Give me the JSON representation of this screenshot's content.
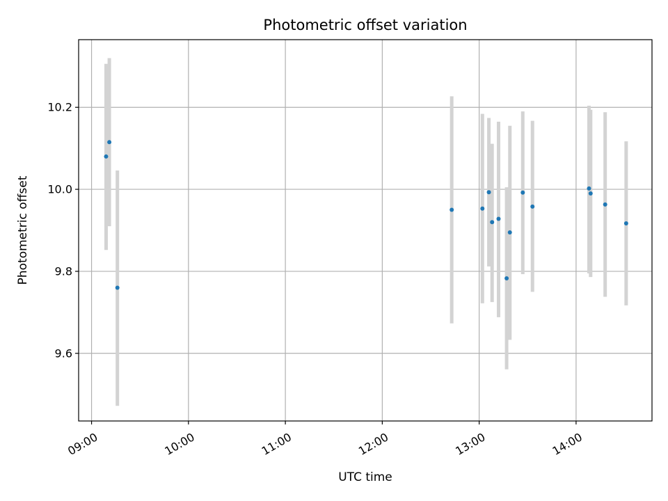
{
  "chart_data": {
    "type": "scatter",
    "title": "Photometric offset variation",
    "xlabel": "UTC time",
    "ylabel": "Photometric offset",
    "x_unit": "UTC time (HH:MM)",
    "xlim": [
      "08:52",
      "14:47"
    ],
    "ylim": [
      9.435,
      10.365
    ],
    "x_ticks": [
      "09:00",
      "10:00",
      "11:00",
      "12:00",
      "13:00",
      "14:00"
    ],
    "y_ticks": [
      9.6,
      9.8,
      10.0,
      10.2
    ],
    "y_tick_labels": [
      "9.6",
      "9.8",
      "10.0",
      "10.2"
    ],
    "grid": true,
    "x_tick_rotation_deg": 30,
    "colors": {
      "point": "#1f77b4",
      "errorbar": "#d3d3d3",
      "grid": "#b0b0b0",
      "axes": "#000000"
    },
    "points": [
      {
        "x": "09:09",
        "y": 10.08,
        "y_err_low": 9.852,
        "y_err_high": 10.306
      },
      {
        "x": "09:11",
        "y": 10.115,
        "y_err_low": 9.91,
        "y_err_high": 10.32
      },
      {
        "x": "09:16",
        "y": 9.76,
        "y_err_low": 9.472,
        "y_err_high": 10.046
      },
      {
        "x": "12:43",
        "y": 9.95,
        "y_err_low": 9.673,
        "y_err_high": 10.227
      },
      {
        "x": "13:02",
        "y": 9.953,
        "y_err_low": 9.722,
        "y_err_high": 10.184
      },
      {
        "x": "13:06",
        "y": 9.993,
        "y_err_low": 9.812,
        "y_err_high": 10.174
      },
      {
        "x": "13:08",
        "y": 9.92,
        "y_err_low": 9.725,
        "y_err_high": 10.111
      },
      {
        "x": "13:12",
        "y": 9.928,
        "y_err_low": 9.688,
        "y_err_high": 10.165
      },
      {
        "x": "13:17",
        "y": 9.783,
        "y_err_low": 9.561,
        "y_err_high": 10.005
      },
      {
        "x": "13:19",
        "y": 9.895,
        "y_err_low": 9.633,
        "y_err_high": 10.155
      },
      {
        "x": "13:27",
        "y": 9.992,
        "y_err_low": 9.793,
        "y_err_high": 10.19
      },
      {
        "x": "13:33",
        "y": 9.958,
        "y_err_low": 9.75,
        "y_err_high": 10.167
      },
      {
        "x": "14:08",
        "y": 10.002,
        "y_err_low": 9.795,
        "y_err_high": 10.204
      },
      {
        "x": "14:09",
        "y": 9.99,
        "y_err_low": 9.786,
        "y_err_high": 10.194
      },
      {
        "x": "14:18",
        "y": 9.963,
        "y_err_low": 9.738,
        "y_err_high": 10.188
      },
      {
        "x": "14:31",
        "y": 9.917,
        "y_err_low": 9.717,
        "y_err_high": 10.117
      }
    ]
  }
}
